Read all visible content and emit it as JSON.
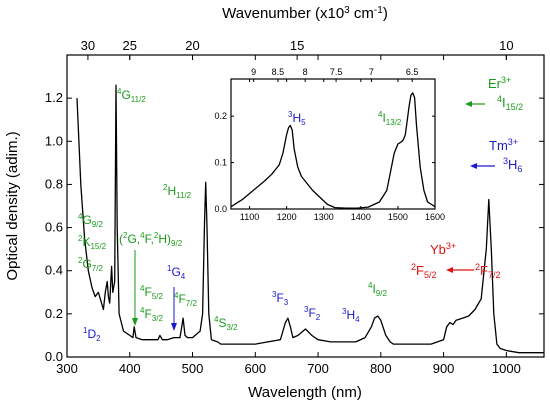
{
  "chart_data": {
    "type": "line",
    "xlabel": "Wavelength (nm)",
    "ylabel": "Optical density (adim.)",
    "x2label": "Wavenumber (x10",
    "x2label_sup": "3",
    "x2label_unit": " cm",
    "x2label_sup2": "-1",
    "x2label_close": ")",
    "xlim": [
      300,
      1060
    ],
    "ylim": [
      0,
      1.4
    ],
    "x_ticks": [
      "300",
      "400",
      "500",
      "600",
      "700",
      "800",
      "900",
      "1000"
    ],
    "y_ticks": [
      "0.0",
      "0.2",
      "0.4",
      "0.6",
      "0.8",
      "1.0",
      "1.2"
    ],
    "top_ticks": [
      "30",
      "25",
      "20",
      "15",
      "10"
    ],
    "top_tick_values": [
      30,
      25,
      20,
      15,
      10
    ],
    "grid": false,
    "series": [
      {
        "x": [
          316,
          322,
          328,
          334,
          340,
          345,
          350,
          355,
          358,
          361,
          364,
          366,
          368,
          371,
          373,
          376,
          378,
          380,
          383,
          390,
          400,
          405,
          407,
          410,
          420,
          430,
          445,
          448,
          452,
          460,
          470,
          480,
          485,
          488,
          492,
          500,
          512,
          516,
          519,
          521,
          523,
          526,
          530,
          540,
          545,
          550,
          560,
          580,
          600,
          620,
          640,
          648,
          652,
          656,
          660,
          668,
          680,
          690,
          695,
          700,
          720,
          740,
          760,
          775,
          785,
          790,
          795,
          800,
          808,
          815,
          820,
          850,
          880,
          900,
          905,
          910,
          915,
          920,
          930,
          940,
          950,
          960,
          968,
          972,
          976,
          980,
          985,
          990,
          1000,
          1020,
          1040,
          1060
        ],
        "y": [
          1.2,
          0.8,
          0.55,
          0.4,
          0.32,
          0.28,
          0.3,
          0.25,
          0.22,
          0.3,
          0.35,
          0.28,
          0.25,
          0.42,
          0.3,
          0.35,
          1.26,
          0.6,
          0.2,
          0.12,
          0.1,
          0.09,
          0.14,
          0.09,
          0.08,
          0.08,
          0.08,
          0.1,
          0.08,
          0.08,
          0.09,
          0.09,
          0.18,
          0.1,
          0.09,
          0.09,
          0.12,
          0.2,
          0.62,
          0.81,
          0.6,
          0.2,
          0.08,
          0.07,
          0.06,
          0.06,
          0.06,
          0.06,
          0.06,
          0.07,
          0.08,
          0.16,
          0.18,
          0.14,
          0.09,
          0.1,
          0.13,
          0.1,
          0.09,
          0.08,
          0.07,
          0.07,
          0.07,
          0.09,
          0.14,
          0.18,
          0.19,
          0.17,
          0.1,
          0.07,
          0.06,
          0.06,
          0.06,
          0.08,
          0.14,
          0.16,
          0.15,
          0.17,
          0.18,
          0.19,
          0.22,
          0.27,
          0.5,
          0.73,
          0.5,
          0.2,
          0.06,
          0.04,
          0.03,
          0.02,
          0.02,
          0.02
        ]
      }
    ],
    "inset": {
      "type": "line",
      "xlim": [
        1050,
        1600
      ],
      "ylim": [
        0,
        0.28
      ],
      "x_ticks": [
        "1100",
        "1200",
        "1300",
        "1400",
        "1500",
        "1600"
      ],
      "y_ticks": [
        "0.0",
        "0.1",
        "0.2"
      ],
      "top_ticks": [
        "9",
        "8.5",
        "8",
        "7.5",
        "7",
        "6.5"
      ],
      "top_tick_values": [
        9,
        8.5,
        8,
        7.5,
        7,
        6.5
      ],
      "series": [
        {
          "x": [
            1050,
            1080,
            1110,
            1140,
            1160,
            1180,
            1190,
            1200,
            1205,
            1210,
            1215,
            1220,
            1230,
            1240,
            1250,
            1270,
            1290,
            1310,
            1330,
            1360,
            1390,
            1420,
            1450,
            1470,
            1480,
            1490,
            1500,
            1510,
            1515,
            1520,
            1525,
            1530,
            1535,
            1540,
            1545,
            1550,
            1560,
            1570,
            1580,
            1600
          ],
          "y": [
            0.005,
            0.02,
            0.04,
            0.06,
            0.075,
            0.095,
            0.12,
            0.16,
            0.175,
            0.18,
            0.17,
            0.13,
            0.09,
            0.07,
            0.06,
            0.04,
            0.025,
            0.01,
            0.003,
            0.002,
            0.002,
            0.004,
            0.015,
            0.04,
            0.08,
            0.12,
            0.14,
            0.145,
            0.15,
            0.16,
            0.19,
            0.22,
            0.245,
            0.25,
            0.24,
            0.18,
            0.09,
            0.04,
            0.015,
            0.005
          ]
        }
      ]
    },
    "annotations": {
      "er3": "Er",
      "er3_sup": "3+",
      "er_i152_sup": "4",
      "er_i152": "I",
      "er_i152_sub": "15/2",
      "tm3": "Tm",
      "tm3_sup": "3+",
      "tm_h6_sup": "3",
      "tm_h6": "H",
      "tm_h6_sub": "6",
      "yb3": "Yb",
      "yb3_sup": "3+",
      "yb_f52_sup": "2",
      "yb_f52": "F",
      "yb_f52_sub": "5/2",
      "yb_f72_sup": "2",
      "yb_f72": "F",
      "yb_f72_sub": "7/2",
      "g112_sup": "4",
      "g112": "G",
      "g112_sub": "11/2",
      "h112_sup": "2",
      "h112": "H",
      "h112_sub": "11/2",
      "g92_sup": "4",
      "g92": "G",
      "g92_sub": "9/2",
      "k152_sup": "2",
      "k152": "K",
      "k152_sub": "15/2",
      "g72_sup": "2",
      "g72": "G",
      "g72_sub": "7/2",
      "mix_open": "(",
      "mix_sup1": "2",
      "mix_g": "G,",
      "mix_sup2": "4",
      "mix_f": "F,",
      "mix_sup3": "2",
      "mix_h": "H)",
      "mix_sub": "9/2",
      "f52_sup": "4",
      "f52": "F",
      "f52_sub": "5/2",
      "f32_sup": "4",
      "f32": "F",
      "f32_sub": "3/2",
      "f72_sup": "4",
      "f72": "F",
      "f72_sub": "7/2",
      "g4_sup": "1",
      "g4": "G",
      "g4_sub": "4",
      "s32_sup": "4",
      "s32": "S",
      "s32_sub": "3/2",
      "d2_sup": "1",
      "d2": "D",
      "d2_sub": "2",
      "f3_sup": "3",
      "f3": "F",
      "f3_sub": "3",
      "f2_sup": "3",
      "f2": "F",
      "f2_sub": "2",
      "h4_sup": "3",
      "h4": "H",
      "h4_sub": "4",
      "i92_sup": "4",
      "i92": "I",
      "i92_sub": "9/2",
      "h5_sup": "3",
      "h5": "H",
      "h5_sub": "5",
      "i132_sup": "4",
      "i132": "I",
      "i132_sub": "13/2"
    },
    "colors": {
      "er": "#1a9a1a",
      "tm": "#1a1acc",
      "yb": "#e01010",
      "line": "#000000"
    }
  }
}
